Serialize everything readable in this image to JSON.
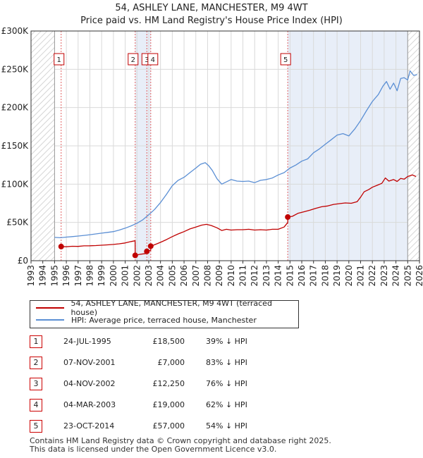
{
  "title_line1": "54, ASHLEY LANE, MANCHESTER, M9 4WT",
  "title_line2": "Price paid vs. HM Land Registry's House Price Index (HPI)",
  "colors": {
    "property": "#c00000",
    "hpi": "#5b8fd4",
    "marker_line": "#e06060",
    "shade": "#e8eef8",
    "grid": "#d9d9d9"
  },
  "chart_data": {
    "type": "line",
    "ylim": [
      0,
      300000
    ],
    "xlim": [
      1993,
      2026
    ],
    "y_ticks": [
      {
        "value": 0,
        "label": "£0"
      },
      {
        "value": 50000,
        "label": "£50K"
      },
      {
        "value": 100000,
        "label": "£100K"
      },
      {
        "value": 150000,
        "label": "£150K"
      },
      {
        "value": 200000,
        "label": "£200K"
      },
      {
        "value": 250000,
        "label": "£250K"
      },
      {
        "value": 300000,
        "label": "£300K"
      }
    ],
    "x_ticks": [
      "1993",
      "1994",
      "1995",
      "1996",
      "1997",
      "1998",
      "1999",
      "2000",
      "2001",
      "2002",
      "2003",
      "2004",
      "2005",
      "2006",
      "2007",
      "2008",
      "2009",
      "2010",
      "2011",
      "2012",
      "2013",
      "2014",
      "2015",
      "2016",
      "2017",
      "2018",
      "2019",
      "2020",
      "2021",
      "2022",
      "2023",
      "2024",
      "2025",
      "2026"
    ],
    "hatched_before": 1995.0,
    "hatched_after": 2025.0,
    "series": [
      {
        "name": "54, ASHLEY LANE, MANCHESTER, M9 4WT (terraced house)",
        "color": "#c00000",
        "x": [
          1995.56,
          1996.0,
          1996.5,
          1997.0,
          1997.5,
          1998.0,
          1998.5,
          1999.0,
          1999.5,
          2000.0,
          2000.5,
          2001.0,
          2001.5,
          2001.84,
          2001.85,
          2002.3,
          2002.84,
          2002.85,
          2003.17,
          2003.18,
          2003.6,
          2004.0,
          2004.5,
          2005.0,
          2005.5,
          2006.0,
          2006.5,
          2007.0,
          2007.5,
          2007.9,
          2008.3,
          2008.8,
          2009.2,
          2009.6,
          2010.0,
          2010.5,
          2011.0,
          2011.5,
          2012.0,
          2012.5,
          2013.0,
          2013.5,
          2014.0,
          2014.5,
          2014.81,
          2014.82,
          2015.2,
          2015.7,
          2016.2,
          2016.7,
          2017.2,
          2017.7,
          2018.2,
          2018.7,
          2019.2,
          2019.7,
          2020.2,
          2020.7,
          2021.0,
          2021.3,
          2021.7,
          2022.0,
          2022.4,
          2022.8,
          2023.1,
          2023.4,
          2023.8,
          2024.1,
          2024.4,
          2024.7,
          2025.0,
          2025.4,
          2025.7
        ],
        "y": [
          18500,
          18200,
          18900,
          18700,
          19400,
          19500,
          19800,
          20200,
          20700,
          21300,
          22100,
          23200,
          25000,
          26000,
          7000,
          8500,
          9500,
          12250,
          13500,
          19000,
          21500,
          24000,
          27500,
          31500,
          35000,
          38000,
          41500,
          44000,
          46500,
          47500,
          46000,
          43000,
          39500,
          41000,
          40000,
          40500,
          40500,
          41000,
          40000,
          40500,
          40000,
          41000,
          41000,
          44000,
          50000,
          57000,
          58000,
          62000,
          64000,
          66000,
          68500,
          70500,
          71500,
          73500,
          74500,
          75500,
          75000,
          77000,
          83000,
          90000,
          93000,
          96000,
          98500,
          101000,
          108000,
          104000,
          106000,
          103500,
          107500,
          106500,
          110000,
          112000,
          110000
        ]
      },
      {
        "name": "HPI: Average price, terraced house, Manchester",
        "color": "#5b8fd4",
        "x": [
          1995.0,
          1995.5,
          1996.0,
          1996.5,
          1997.0,
          1997.5,
          1998.0,
          1998.5,
          1999.0,
          1999.5,
          2000.0,
          2000.5,
          2001.0,
          2001.5,
          2002.0,
          2002.5,
          2003.0,
          2003.5,
          2004.0,
          2004.5,
          2005.0,
          2005.5,
          2006.0,
          2006.5,
          2007.0,
          2007.4,
          2007.8,
          2008.1,
          2008.4,
          2008.8,
          2009.2,
          2009.6,
          2010.0,
          2010.5,
          2011.0,
          2011.5,
          2012.0,
          2012.5,
          2013.0,
          2013.5,
          2014.0,
          2014.5,
          2015.0,
          2015.5,
          2016.0,
          2016.5,
          2017.0,
          2017.5,
          2018.0,
          2018.5,
          2019.0,
          2019.5,
          2020.0,
          2020.5,
          2021.0,
          2021.5,
          2022.0,
          2022.5,
          2022.9,
          2023.2,
          2023.5,
          2023.8,
          2024.1,
          2024.4,
          2024.7,
          2025.0,
          2025.2,
          2025.5,
          2025.8
        ],
        "y": [
          30500,
          30000,
          30800,
          31500,
          32200,
          33000,
          34000,
          35000,
          36000,
          37000,
          38000,
          40000,
          42500,
          45500,
          49000,
          53500,
          60000,
          67000,
          76000,
          86500,
          98000,
          105000,
          109000,
          115000,
          121000,
          126000,
          128000,
          124000,
          118000,
          107000,
          100000,
          103000,
          106000,
          104000,
          103500,
          104000,
          102000,
          105000,
          106000,
          108000,
          112000,
          115000,
          121000,
          125000,
          130000,
          133000,
          141000,
          146000,
          152000,
          158000,
          164000,
          166000,
          163000,
          172000,
          183000,
          196000,
          208000,
          217000,
          228000,
          234000,
          224000,
          232000,
          222000,
          238000,
          239000,
          236000,
          248000,
          242000,
          243000
        ]
      }
    ],
    "markers": [
      {
        "num": "1",
        "x": 1995.56,
        "y": 18500
      },
      {
        "num": "2",
        "x": 2001.85,
        "y": 7000
      },
      {
        "num": "3",
        "x": 2002.84,
        "y": 12250
      },
      {
        "num": "4",
        "x": 2003.17,
        "y": 19000
      },
      {
        "num": "5",
        "x": 2014.81,
        "y": 57000
      }
    ]
  },
  "legend": {
    "property_label": "54, ASHLEY LANE, MANCHESTER, M9 4WT (terraced house)",
    "hpi_label": "HPI: Average price, terraced house, Manchester"
  },
  "transactions": [
    {
      "num": "1",
      "date": "24-JUL-1995",
      "price": "£18,500",
      "hpi": "39% ↓ HPI"
    },
    {
      "num": "2",
      "date": "07-NOV-2001",
      "price": "£7,000",
      "hpi": "83% ↓ HPI"
    },
    {
      "num": "3",
      "date": "04-NOV-2002",
      "price": "£12,250",
      "hpi": "76% ↓ HPI"
    },
    {
      "num": "4",
      "date": "04-MAR-2003",
      "price": "£19,000",
      "hpi": "62% ↓ HPI"
    },
    {
      "num": "5",
      "date": "23-OCT-2014",
      "price": "£57,000",
      "hpi": "54% ↓ HPI"
    }
  ],
  "footer": {
    "line1": "Contains HM Land Registry data © Crown copyright and database right 2025.",
    "line2": "This data is licensed under the Open Government Licence v3.0."
  }
}
